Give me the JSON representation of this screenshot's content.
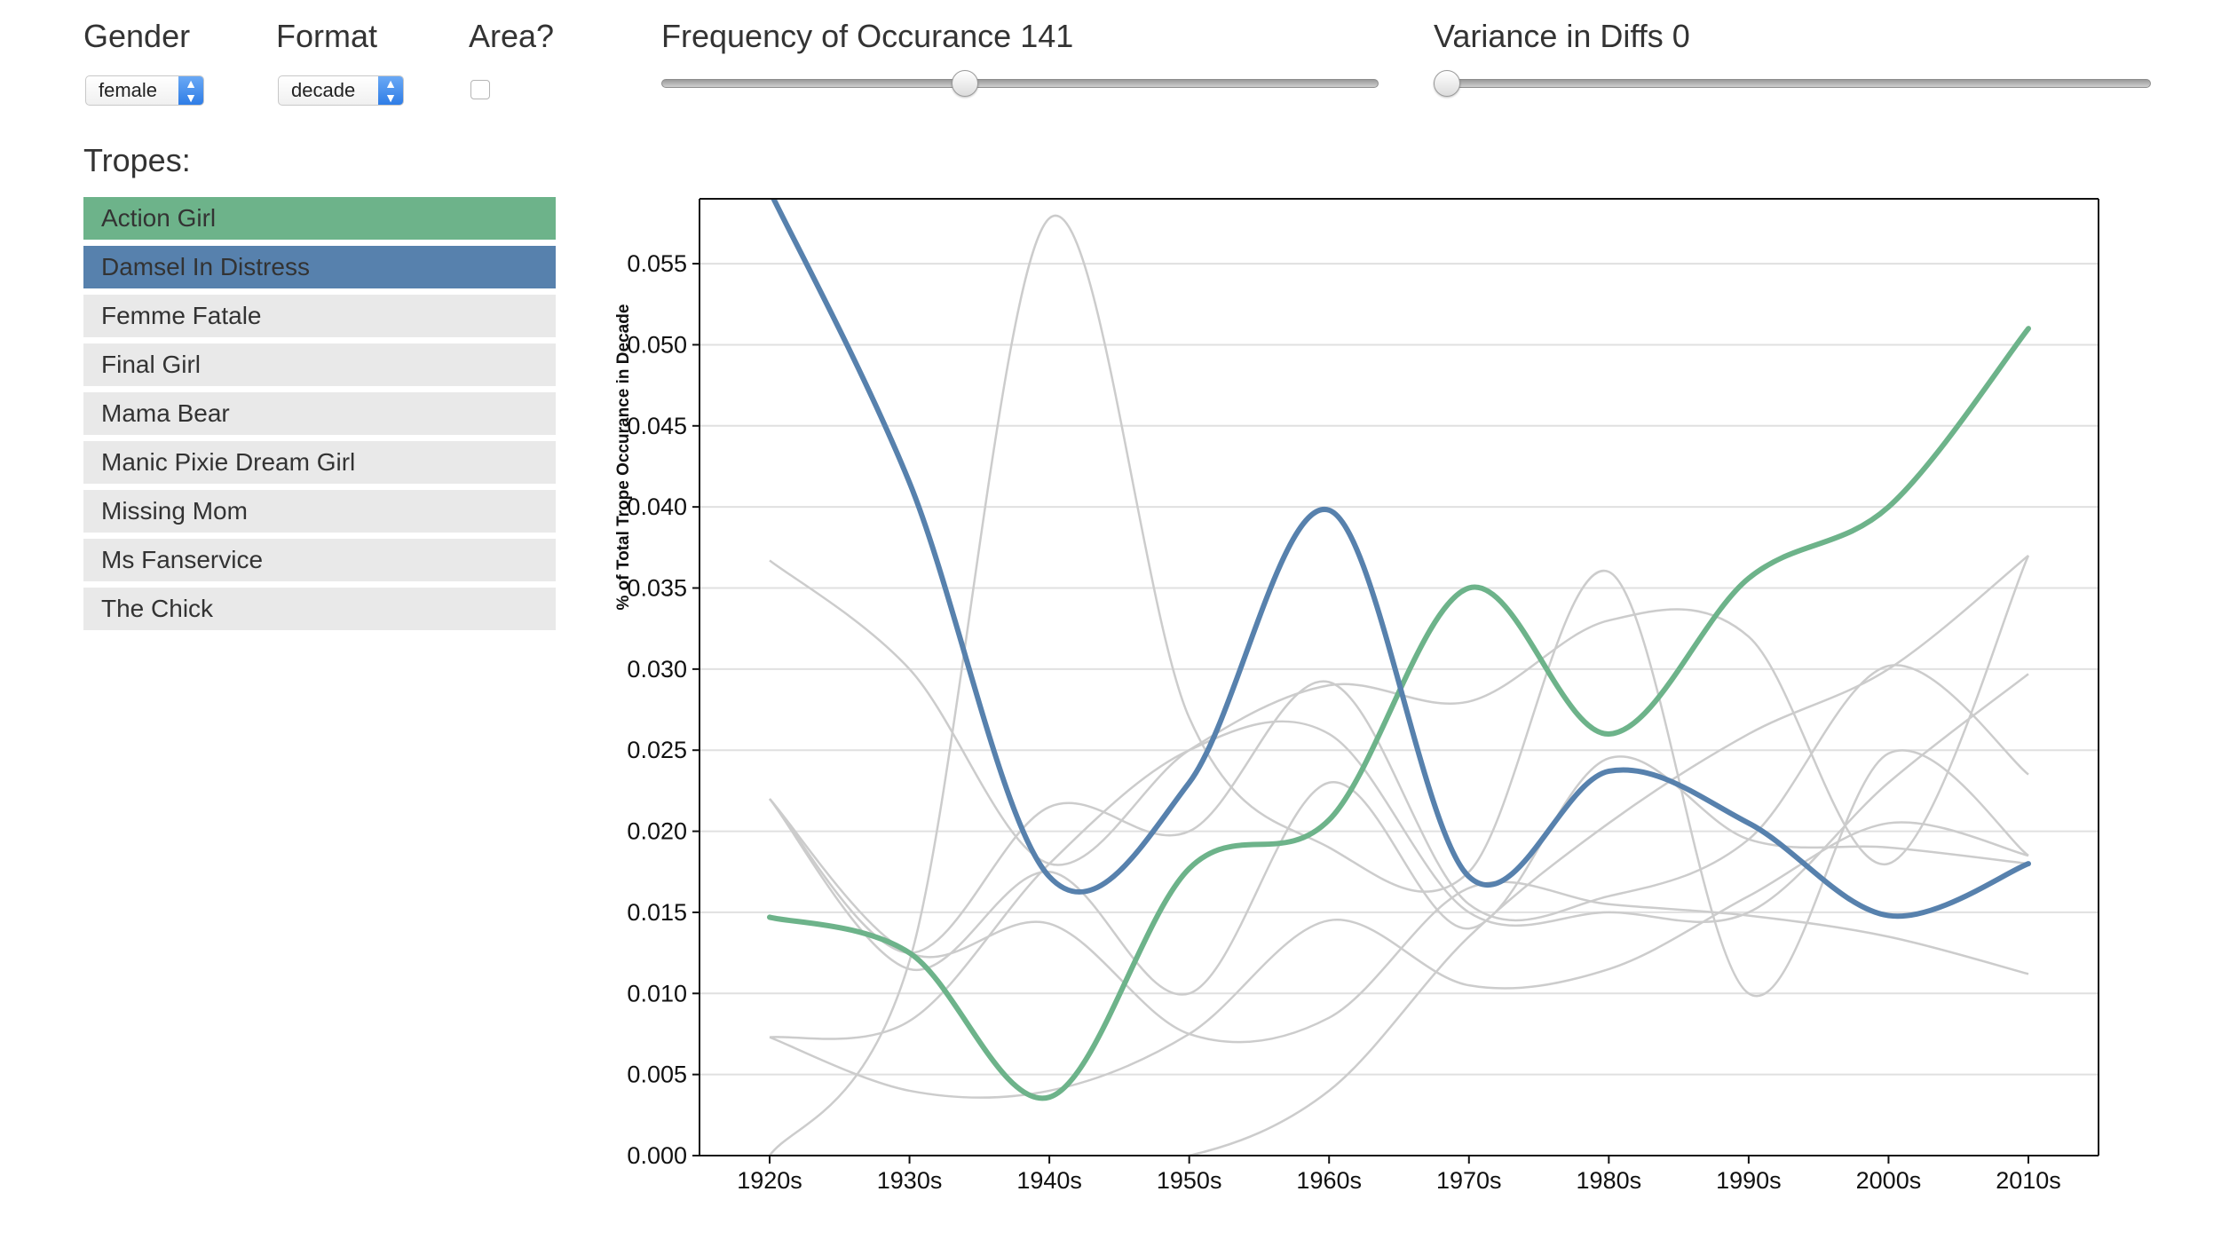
{
  "controls": {
    "gender_label": "Gender",
    "gender_value": "female",
    "format_label": "Format",
    "format_value": "decade",
    "area_label": "Area?",
    "area_checked": false,
    "frequency": {
      "title": "Frequency of Occurance 141",
      "fraction": 0.42
    },
    "variance": {
      "title": "Variance in Diffs 0",
      "fraction": 0.0
    }
  },
  "tropes": {
    "title": "Tropes:",
    "items": [
      {
        "label": "Action Girl",
        "state": "selected",
        "color": "#6db38a"
      },
      {
        "label": "Damsel In Distress",
        "state": "selected",
        "color": "#5781ad"
      },
      {
        "label": "Femme Fatale",
        "state": "unselected",
        "color": "#e9e9e9"
      },
      {
        "label": "Final Girl",
        "state": "unselected",
        "color": "#e9e9e9"
      },
      {
        "label": "Mama Bear",
        "state": "unselected",
        "color": "#e9e9e9"
      },
      {
        "label": "Manic Pixie Dream Girl",
        "state": "unselected",
        "color": "#e9e9e9"
      },
      {
        "label": "Missing Mom",
        "state": "unselected",
        "color": "#e9e9e9"
      },
      {
        "label": "Ms Fanservice",
        "state": "unselected",
        "color": "#e9e9e9"
      },
      {
        "label": "The Chick",
        "state": "unselected",
        "color": "#e9e9e9"
      }
    ]
  },
  "chart_data": {
    "type": "line",
    "curve": "smooth",
    "ylabel": "% of Total Trope Occurance in Decade",
    "xlabel": "",
    "categories": [
      "1920s",
      "1930s",
      "1940s",
      "1950s",
      "1960s",
      "1970s",
      "1980s",
      "1990s",
      "2000s",
      "2010s"
    ],
    "ylim": [
      0,
      0.059
    ],
    "yticks": [
      "0.000",
      "0.005",
      "0.010",
      "0.015",
      "0.020",
      "0.025",
      "0.030",
      "0.035",
      "0.040",
      "0.045",
      "0.050",
      "0.055"
    ],
    "grid": true,
    "highlight_colors": {
      "Action Girl": "#6db38a",
      "Damsel In Distress": "#5781ad"
    },
    "background_color": "#cccccc",
    "series": [
      {
        "name": "Action Girl",
        "highlight": true,
        "values": [
          0.0147,
          0.0125,
          0.0036,
          0.0177,
          0.0207,
          0.035,
          0.026,
          0.0356,
          0.04,
          0.051
        ]
      },
      {
        "name": "Damsel In Distress",
        "highlight": true,
        "values": [
          0.0595,
          0.0415,
          0.0172,
          0.023,
          0.0398,
          0.0172,
          0.0237,
          0.0205,
          0.0148,
          0.018
        ]
      },
      {
        "highlight": false,
        "values": [
          0.0,
          0.012,
          0.0578,
          0.027,
          0.019,
          0.0175,
          0.036,
          0.01,
          0.0248,
          0.0185
        ]
      },
      {
        "highlight": false,
        "values": [
          0.0367,
          0.03,
          0.018,
          0.025,
          0.029,
          0.028,
          0.033,
          0.032,
          0.018,
          0.037
        ]
      },
      {
        "highlight": false,
        "values": [
          0.022,
          0.0125,
          0.0215,
          0.02,
          0.0292,
          0.0155,
          0.016,
          0.0195,
          0.0302,
          0.0235
        ]
      },
      {
        "highlight": false,
        "values": [
          0.022,
          0.0115,
          0.0175,
          0.01,
          0.023,
          0.014,
          0.0245,
          0.0195,
          0.019,
          0.018
        ]
      },
      {
        "highlight": false,
        "values": [
          0.0073,
          0.0083,
          0.018,
          0.025,
          0.026,
          0.015,
          0.015,
          0.015,
          0.023,
          0.0297
        ]
      },
      {
        "highlight": false,
        "values": [
          0.0073,
          0.004,
          0.004,
          0.0075,
          0.0145,
          0.0105,
          0.0115,
          0.016,
          0.0205,
          0.0185
        ]
      },
      {
        "highlight": false,
        "values": [
          0.022,
          0.0125,
          0.0143,
          0.0075,
          0.0085,
          0.0165,
          0.0155,
          0.0148,
          0.0135,
          0.0112
        ]
      },
      {
        "highlight": false,
        "values": [
          0.0,
          0.0,
          0.0,
          0.0,
          0.004,
          0.0135,
          0.0205,
          0.026,
          0.03,
          0.037
        ]
      }
    ]
  }
}
